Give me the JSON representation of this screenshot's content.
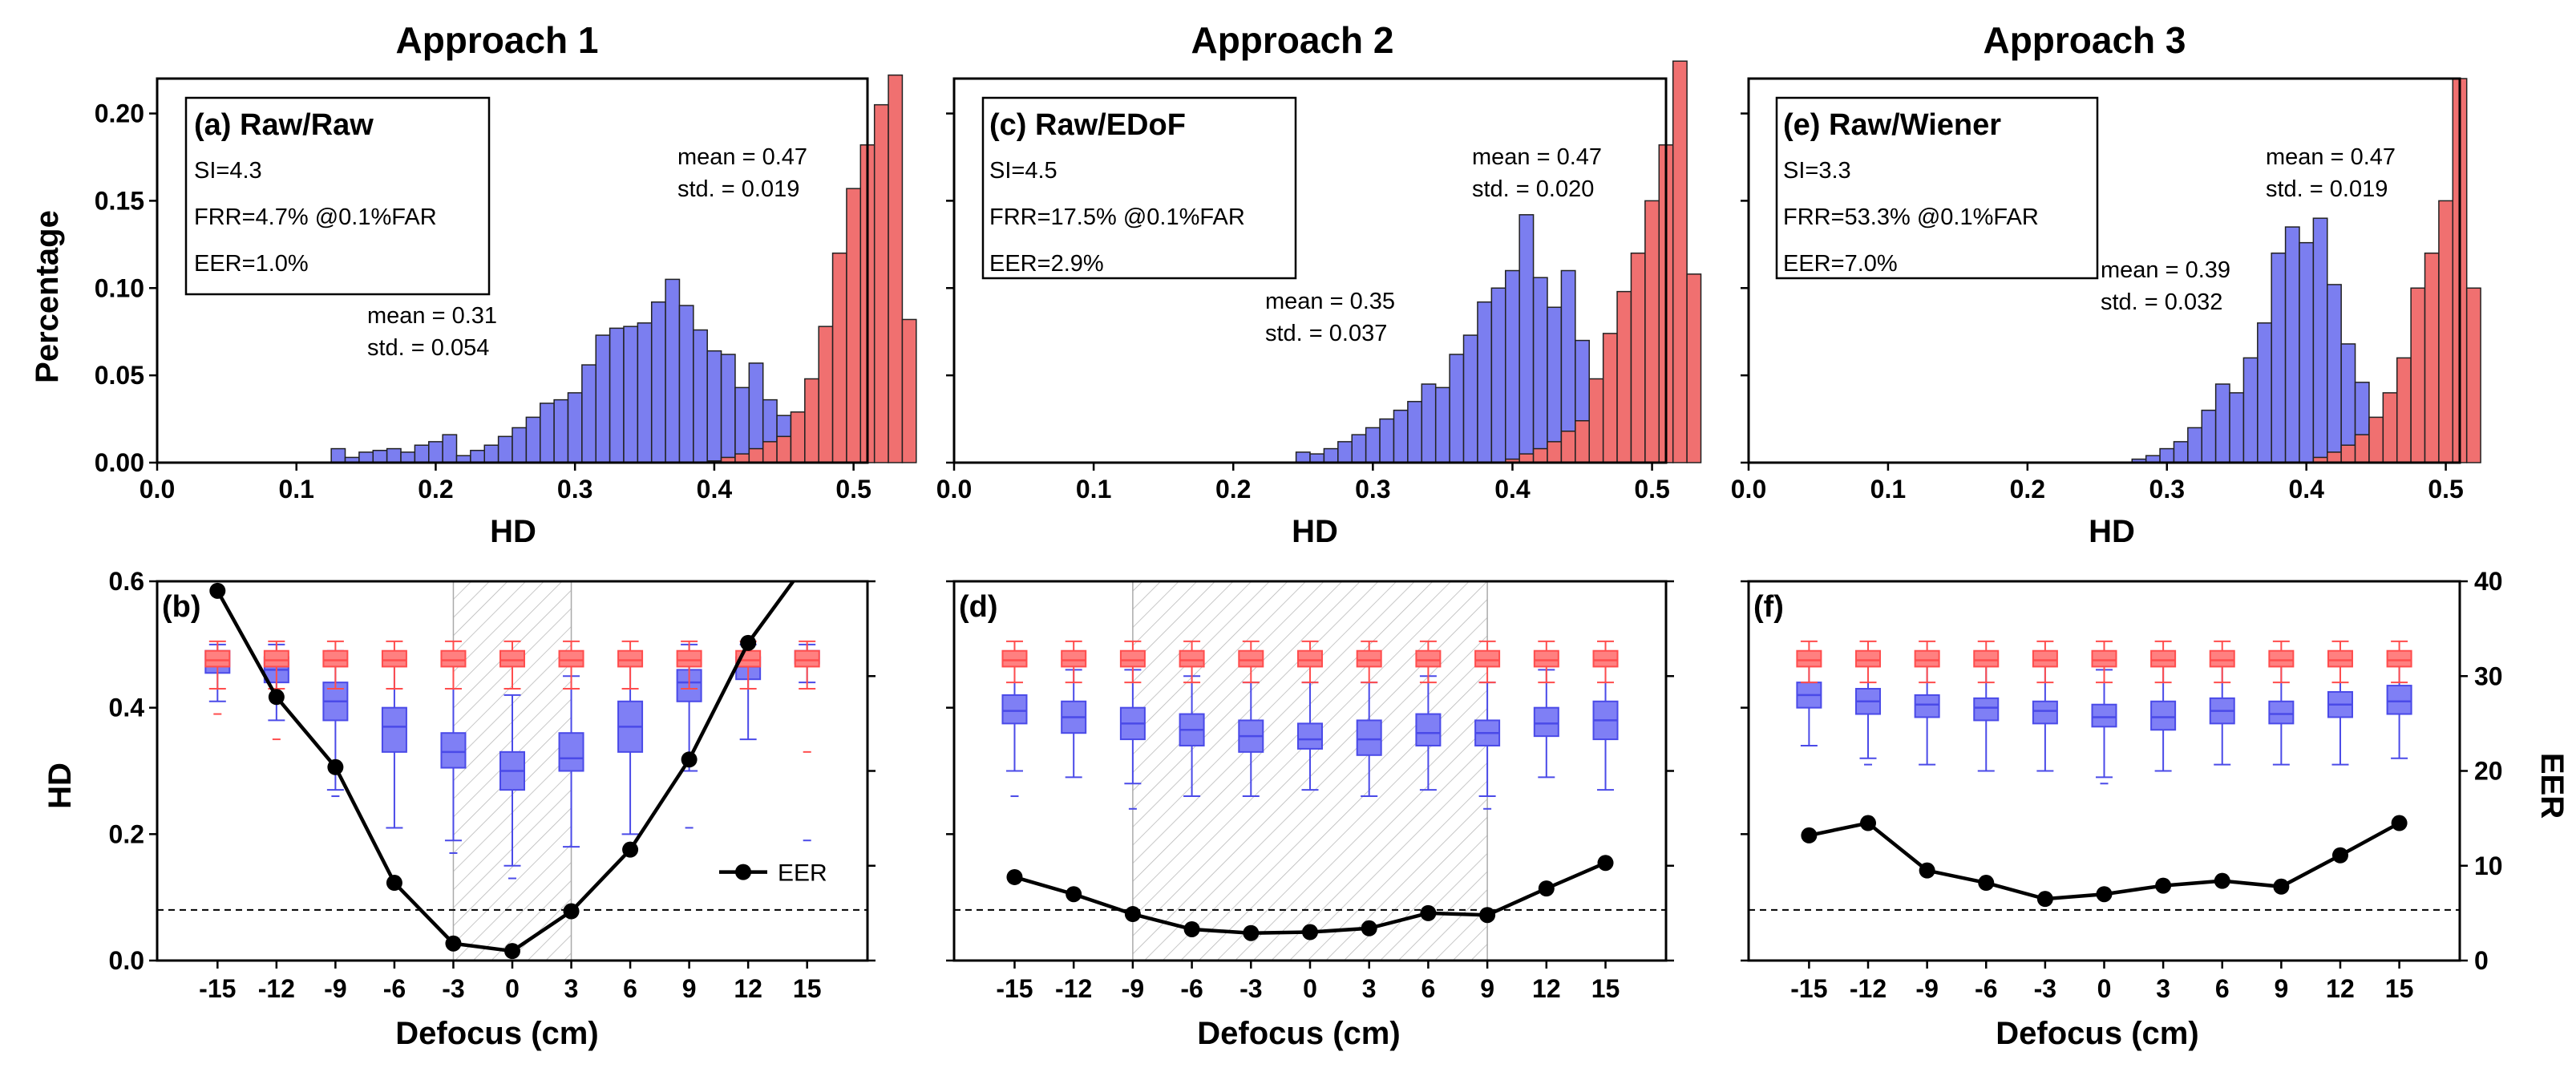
{
  "colors": {
    "genuine": "#7b7ef0",
    "impostor": "#f07070",
    "box_red": "#ff4d4d",
    "box_blue": "#4a4ae8",
    "eer_line": "#000000",
    "shade": "#999999"
  },
  "titles": [
    "Approach 1",
    "Approach 2",
    "Approach 3"
  ],
  "shared_labels": {
    "hist_ylabel": "Percentage",
    "hist_xlabel": "HD",
    "box_ylabel": "HD",
    "box_xlabel": "Defocus (cm)",
    "eer_ylabel": "EER",
    "eer_legend": "EER"
  },
  "chart_data": [
    {
      "type": "bar",
      "panel": "(a) Raw/Raw",
      "xlabel": "HD",
      "ylabel": "Percentage",
      "xlim": [
        0,
        0.51
      ],
      "ylim": [
        0,
        0.22
      ],
      "xticks": [
        0.0,
        0.1,
        0.2,
        0.3,
        0.4,
        0.5
      ],
      "yticks": [
        0.0,
        0.05,
        0.1,
        0.15,
        0.2
      ],
      "stats": [
        "SI=4.3",
        "FRR=4.7% @0.1%FAR",
        "EER=1.0%"
      ],
      "genuine_label": [
        "mean = 0.31",
        "std. = 0.054"
      ],
      "impostor_label": [
        "mean = 0.47",
        "std. = 0.019"
      ],
      "series": [
        {
          "name": "genuine",
          "start": 0.125,
          "bin": 0.01,
          "values": [
            0.008,
            0.003,
            0.006,
            0.007,
            0.008,
            0.006,
            0.01,
            0.012,
            0.016,
            0.004,
            0.007,
            0.01,
            0.015,
            0.02,
            0.026,
            0.034,
            0.036,
            0.04,
            0.056,
            0.073,
            0.077,
            0.078,
            0.08,
            0.092,
            0.105,
            0.09,
            0.076,
            0.064,
            0.062,
            0.043,
            0.057,
            0.036,
            0.027,
            0.018,
            0.01,
            0.008,
            0.006,
            0.004
          ]
        },
        {
          "name": "impostor",
          "start": 0.395,
          "bin": 0.01,
          "values": [
            0.001,
            0.003,
            0.005,
            0.008,
            0.012,
            0.015,
            0.029,
            0.048,
            0.078,
            0.12,
            0.157,
            0.182,
            0.205,
            0.222,
            0.082
          ]
        }
      ]
    },
    {
      "type": "bar",
      "panel": "(c) Raw/EDoF",
      "xlabel": "HD",
      "ylabel": "",
      "xlim": [
        0,
        0.51
      ],
      "ylim": [
        0,
        0.22
      ],
      "xticks": [
        0.0,
        0.1,
        0.2,
        0.3,
        0.4,
        0.5
      ],
      "stats": [
        "SI=4.5",
        "FRR=17.5% @0.1%FAR",
        "EER=2.9%"
      ],
      "genuine_label": [
        "mean = 0.35",
        "std. = 0.037"
      ],
      "impostor_label": [
        "mean = 0.47",
        "std. = 0.020"
      ],
      "series": [
        {
          "name": "genuine",
          "start": 0.245,
          "bin": 0.01,
          "values": [
            0.006,
            0.005,
            0.008,
            0.012,
            0.016,
            0.02,
            0.025,
            0.03,
            0.035,
            0.045,
            0.043,
            0.062,
            0.073,
            0.092,
            0.1,
            0.11,
            0.142,
            0.106,
            0.089,
            0.11,
            0.07,
            0.045,
            0.03,
            0.012,
            0.008
          ]
        },
        {
          "name": "impostor",
          "start": 0.395,
          "bin": 0.01,
          "values": [
            0.002,
            0.005,
            0.008,
            0.012,
            0.018,
            0.024,
            0.048,
            0.074,
            0.098,
            0.12,
            0.15,
            0.182,
            0.23,
            0.108
          ]
        }
      ]
    },
    {
      "type": "bar",
      "panel": "(e) Raw/Wiener",
      "xlabel": "HD",
      "ylabel": "",
      "xlim": [
        0,
        0.51
      ],
      "ylim": [
        0,
        0.22
      ],
      "xticks": [
        0.0,
        0.1,
        0.2,
        0.3,
        0.4,
        0.5
      ],
      "stats": [
        "SI=3.3",
        "FRR=53.3% @0.1%FAR",
        "EER=7.0%"
      ],
      "genuine_label": [
        "mean = 0.39",
        "std. = 0.032"
      ],
      "impostor_label": [
        "mean = 0.47",
        "std. = 0.019"
      ],
      "series": [
        {
          "name": "genuine",
          "start": 0.275,
          "bin": 0.01,
          "values": [
            0.002,
            0.004,
            0.008,
            0.012,
            0.02,
            0.03,
            0.045,
            0.04,
            0.06,
            0.08,
            0.12,
            0.135,
            0.126,
            0.14,
            0.102,
            0.068,
            0.046,
            0.022,
            0.01,
            0.005
          ]
        },
        {
          "name": "impostor",
          "start": 0.405,
          "bin": 0.01,
          "values": [
            0.003,
            0.006,
            0.01,
            0.016,
            0.026,
            0.04,
            0.06,
            0.1,
            0.12,
            0.15,
            0.22,
            0.1
          ]
        }
      ]
    },
    {
      "type": "box",
      "panel": "(b)",
      "xlabel": "Defocus (cm)",
      "ylabel": "HD",
      "y2label": "",
      "categories": [
        "-15",
        "-12",
        "-9",
        "-6",
        "-3",
        "0",
        "3",
        "6",
        "9",
        "12",
        "15"
      ],
      "ylim": [
        0,
        0.6
      ],
      "yticks": [
        0.0,
        0.2,
        0.4,
        0.6
      ],
      "y2lim": [
        0,
        40
      ],
      "shaded": [
        -3,
        3
      ],
      "threshold": 0.08,
      "red_boxes": [
        {
          "min": 0.43,
          "q1": 0.465,
          "median": 0.475,
          "q3": 0.49,
          "max": 0.505,
          "outlier": 0.39
        },
        {
          "min": 0.43,
          "q1": 0.465,
          "median": 0.475,
          "q3": 0.49,
          "max": 0.505,
          "outlier": 0.35
        },
        {
          "min": 0.43,
          "q1": 0.465,
          "median": 0.475,
          "q3": 0.49,
          "max": 0.505,
          "outlier": 0.3
        },
        {
          "min": 0.43,
          "q1": 0.465,
          "median": 0.475,
          "q3": 0.49,
          "max": 0.505
        },
        {
          "min": 0.43,
          "q1": 0.465,
          "median": 0.475,
          "q3": 0.49,
          "max": 0.505
        },
        {
          "min": 0.43,
          "q1": 0.465,
          "median": 0.475,
          "q3": 0.49,
          "max": 0.505
        },
        {
          "min": 0.43,
          "q1": 0.465,
          "median": 0.475,
          "q3": 0.49,
          "max": 0.505
        },
        {
          "min": 0.43,
          "q1": 0.465,
          "median": 0.475,
          "q3": 0.49,
          "max": 0.505
        },
        {
          "min": 0.43,
          "q1": 0.465,
          "median": 0.475,
          "q3": 0.49,
          "max": 0.505
        },
        {
          "min": 0.43,
          "q1": 0.465,
          "median": 0.475,
          "q3": 0.49,
          "max": 0.505
        },
        {
          "min": 0.43,
          "q1": 0.465,
          "median": 0.475,
          "q3": 0.49,
          "max": 0.505,
          "outlier": 0.33
        }
      ],
      "blue_boxes": [
        {
          "min": 0.41,
          "q1": 0.455,
          "median": 0.47,
          "q3": 0.49,
          "max": 0.5
        },
        {
          "min": 0.38,
          "q1": 0.44,
          "median": 0.46,
          "q3": 0.48,
          "max": 0.5
        },
        {
          "min": 0.27,
          "q1": 0.38,
          "median": 0.41,
          "q3": 0.44,
          "max": 0.49,
          "outlier": 0.26
        },
        {
          "min": 0.21,
          "q1": 0.33,
          "median": 0.37,
          "q3": 0.4,
          "max": 0.47
        },
        {
          "min": 0.19,
          "q1": 0.305,
          "median": 0.33,
          "q3": 0.36,
          "max": 0.43,
          "outlier": 0.17
        },
        {
          "min": 0.15,
          "q1": 0.27,
          "median": 0.3,
          "q3": 0.33,
          "max": 0.42,
          "outlier": 0.13
        },
        {
          "min": 0.18,
          "q1": 0.3,
          "median": 0.32,
          "q3": 0.36,
          "max": 0.45
        },
        {
          "min": 0.2,
          "q1": 0.33,
          "median": 0.37,
          "q3": 0.41,
          "max": 0.47
        },
        {
          "min": 0.3,
          "q1": 0.41,
          "median": 0.44,
          "q3": 0.46,
          "max": 0.5,
          "outlier": 0.21
        },
        {
          "min": 0.35,
          "q1": 0.445,
          "median": 0.465,
          "q3": 0.48,
          "max": 0.5
        },
        {
          "min": 0.44,
          "q1": 0.47,
          "median": 0.48,
          "q3": 0.49,
          "max": 0.5,
          "outlier": 0.19
        }
      ],
      "eer": [
        39,
        27.8,
        20.4,
        8.2,
        1.8,
        1.0,
        5.2,
        11.7,
        21.2,
        33.5,
        42
      ]
    },
    {
      "type": "box",
      "panel": "(d)",
      "xlabel": "Defocus (cm)",
      "ylabel": "",
      "y2label": "",
      "categories": [
        "-15",
        "-12",
        "-9",
        "-6",
        "-3",
        "0",
        "3",
        "6",
        "9",
        "12",
        "15"
      ],
      "ylim": [
        0,
        0.6
      ],
      "y2lim": [
        0,
        40
      ],
      "shaded": [
        -9,
        9
      ],
      "threshold": 0.08,
      "red_boxes": [
        {
          "min": 0.44,
          "q1": 0.465,
          "median": 0.475,
          "q3": 0.49,
          "max": 0.505
        },
        {
          "min": 0.44,
          "q1": 0.465,
          "median": 0.475,
          "q3": 0.49,
          "max": 0.505
        },
        {
          "min": 0.44,
          "q1": 0.465,
          "median": 0.475,
          "q3": 0.49,
          "max": 0.505
        },
        {
          "min": 0.44,
          "q1": 0.465,
          "median": 0.475,
          "q3": 0.49,
          "max": 0.505
        },
        {
          "min": 0.44,
          "q1": 0.465,
          "median": 0.475,
          "q3": 0.49,
          "max": 0.505
        },
        {
          "min": 0.44,
          "q1": 0.465,
          "median": 0.475,
          "q3": 0.49,
          "max": 0.505
        },
        {
          "min": 0.44,
          "q1": 0.465,
          "median": 0.475,
          "q3": 0.49,
          "max": 0.505
        },
        {
          "min": 0.44,
          "q1": 0.465,
          "median": 0.475,
          "q3": 0.49,
          "max": 0.505
        },
        {
          "min": 0.44,
          "q1": 0.465,
          "median": 0.475,
          "q3": 0.49,
          "max": 0.505
        },
        {
          "min": 0.44,
          "q1": 0.465,
          "median": 0.475,
          "q3": 0.49,
          "max": 0.505
        },
        {
          "min": 0.44,
          "q1": 0.465,
          "median": 0.475,
          "q3": 0.49,
          "max": 0.505
        }
      ],
      "blue_boxes": [
        {
          "min": 0.3,
          "q1": 0.375,
          "median": 0.395,
          "q3": 0.42,
          "max": 0.47,
          "outlier": 0.26
        },
        {
          "min": 0.29,
          "q1": 0.36,
          "median": 0.385,
          "q3": 0.41,
          "max": 0.46
        },
        {
          "min": 0.28,
          "q1": 0.35,
          "median": 0.375,
          "q3": 0.4,
          "max": 0.46,
          "outlier": 0.24
        },
        {
          "min": 0.26,
          "q1": 0.34,
          "median": 0.365,
          "q3": 0.39,
          "max": 0.45
        },
        {
          "min": 0.26,
          "q1": 0.33,
          "median": 0.355,
          "q3": 0.38,
          "max": 0.44
        },
        {
          "min": 0.27,
          "q1": 0.335,
          "median": 0.35,
          "q3": 0.375,
          "max": 0.44
        },
        {
          "min": 0.26,
          "q1": 0.325,
          "median": 0.35,
          "q3": 0.38,
          "max": 0.44
        },
        {
          "min": 0.27,
          "q1": 0.34,
          "median": 0.36,
          "q3": 0.39,
          "max": 0.45
        },
        {
          "min": 0.26,
          "q1": 0.34,
          "median": 0.36,
          "q3": 0.38,
          "max": 0.44,
          "outlier": 0.24
        },
        {
          "min": 0.29,
          "q1": 0.355,
          "median": 0.375,
          "q3": 0.4,
          "max": 0.46
        },
        {
          "min": 0.27,
          "q1": 0.35,
          "median": 0.38,
          "q3": 0.41,
          "max": 0.47
        }
      ],
      "eer": [
        8.8,
        7.0,
        4.9,
        3.3,
        2.9,
        3.0,
        3.4,
        5.0,
        4.8,
        7.6,
        10.3
      ]
    },
    {
      "type": "box",
      "panel": "(f)",
      "xlabel": "Defocus (cm)",
      "ylabel": "",
      "y2label": "EER",
      "categories": [
        "-15",
        "-12",
        "-9",
        "-6",
        "-3",
        "0",
        "3",
        "6",
        "9",
        "12",
        "15"
      ],
      "ylim": [
        0,
        0.6
      ],
      "y2lim": [
        0,
        40
      ],
      "y2ticks": [
        0,
        10,
        20,
        30,
        40
      ],
      "shaded": null,
      "threshold": 0.08,
      "red_boxes": [
        {
          "min": 0.44,
          "q1": 0.465,
          "median": 0.475,
          "q3": 0.49,
          "max": 0.505
        },
        {
          "min": 0.44,
          "q1": 0.465,
          "median": 0.475,
          "q3": 0.49,
          "max": 0.505
        },
        {
          "min": 0.44,
          "q1": 0.465,
          "median": 0.475,
          "q3": 0.49,
          "max": 0.505
        },
        {
          "min": 0.44,
          "q1": 0.465,
          "median": 0.475,
          "q3": 0.49,
          "max": 0.505
        },
        {
          "min": 0.44,
          "q1": 0.465,
          "median": 0.475,
          "q3": 0.49,
          "max": 0.505
        },
        {
          "min": 0.44,
          "q1": 0.465,
          "median": 0.475,
          "q3": 0.49,
          "max": 0.505
        },
        {
          "min": 0.44,
          "q1": 0.465,
          "median": 0.475,
          "q3": 0.49,
          "max": 0.505
        },
        {
          "min": 0.44,
          "q1": 0.465,
          "median": 0.475,
          "q3": 0.49,
          "max": 0.505
        },
        {
          "min": 0.44,
          "q1": 0.465,
          "median": 0.475,
          "q3": 0.49,
          "max": 0.505
        },
        {
          "min": 0.44,
          "q1": 0.465,
          "median": 0.475,
          "q3": 0.49,
          "max": 0.505
        },
        {
          "min": 0.44,
          "q1": 0.465,
          "median": 0.475,
          "q3": 0.49,
          "max": 0.505
        }
      ],
      "blue_boxes": [
        {
          "min": 0.34,
          "q1": 0.4,
          "median": 0.42,
          "q3": 0.44,
          "max": 0.48
        },
        {
          "min": 0.32,
          "q1": 0.39,
          "median": 0.41,
          "q3": 0.43,
          "max": 0.48,
          "outlier": 0.31
        },
        {
          "min": 0.31,
          "q1": 0.385,
          "median": 0.405,
          "q3": 0.42,
          "max": 0.47
        },
        {
          "min": 0.3,
          "q1": 0.38,
          "median": 0.4,
          "q3": 0.415,
          "max": 0.47
        },
        {
          "min": 0.3,
          "q1": 0.375,
          "median": 0.395,
          "q3": 0.41,
          "max": 0.47
        },
        {
          "min": 0.29,
          "q1": 0.37,
          "median": 0.385,
          "q3": 0.405,
          "max": 0.46,
          "outlier": 0.28
        },
        {
          "min": 0.3,
          "q1": 0.365,
          "median": 0.385,
          "q3": 0.41,
          "max": 0.47
        },
        {
          "min": 0.31,
          "q1": 0.375,
          "median": 0.395,
          "q3": 0.415,
          "max": 0.47
        },
        {
          "min": 0.31,
          "q1": 0.375,
          "median": 0.39,
          "q3": 0.41,
          "max": 0.47
        },
        {
          "min": 0.31,
          "q1": 0.385,
          "median": 0.405,
          "q3": 0.425,
          "max": 0.48
        },
        {
          "min": 0.32,
          "q1": 0.39,
          "median": 0.41,
          "q3": 0.435,
          "max": 0.48
        }
      ],
      "eer": [
        13.2,
        14.5,
        9.5,
        8.2,
        6.5,
        7.0,
        7.9,
        8.4,
        7.8,
        11.1,
        14.5
      ]
    }
  ]
}
